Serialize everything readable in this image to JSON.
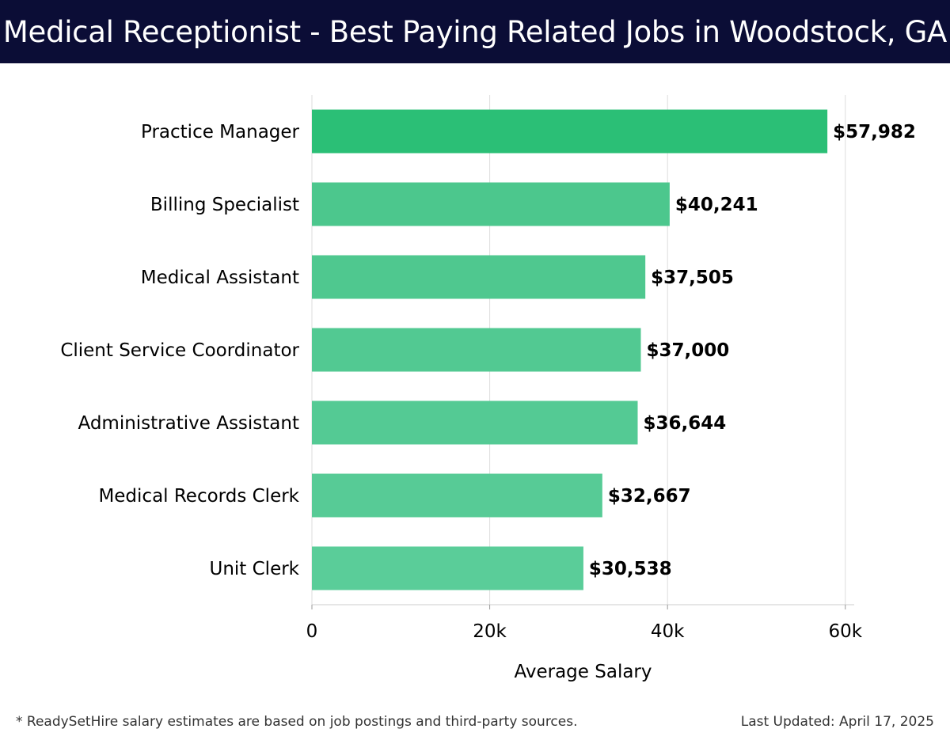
{
  "header": {
    "title": "Medical Receptionist - Best Paying Related Jobs in Woodstock, GA"
  },
  "footer": {
    "note": "* ReadySetHire salary estimates are based on job postings and third-party sources.",
    "updated": "Last Updated: April 17, 2025"
  },
  "colors": {
    "header_bg": "#0b0d36",
    "top_bar": "#2bbf76",
    "other_bars": [
      "#4cc78d",
      "#4fc88f",
      "#52c992",
      "#54ca94",
      "#57cb96",
      "#5acd99"
    ],
    "grid": "#dddddd"
  },
  "chart_data": {
    "type": "bar",
    "orientation": "horizontal",
    "title": "Medical Receptionist - Best Paying Related Jobs in Woodstock, GA",
    "xlabel": "Average Salary",
    "ylabel": "",
    "categories": [
      "Practice Manager",
      "Billing Specialist",
      "Medical Assistant",
      "Client Service Coordinator",
      "Administrative Assistant",
      "Medical Records Clerk",
      "Unit Clerk"
    ],
    "values": [
      57982,
      40241,
      37505,
      37000,
      36644,
      32667,
      30538
    ],
    "value_labels": [
      "$57,982",
      "$40,241",
      "$37,505",
      "$37,000",
      "$36,644",
      "$32,667",
      "$30,538"
    ],
    "xlim": [
      0,
      61000
    ],
    "x_ticks": [
      0,
      20000,
      40000,
      60000
    ],
    "x_tick_labels": [
      "0",
      "20k",
      "40k",
      "60k"
    ],
    "grid": true
  }
}
